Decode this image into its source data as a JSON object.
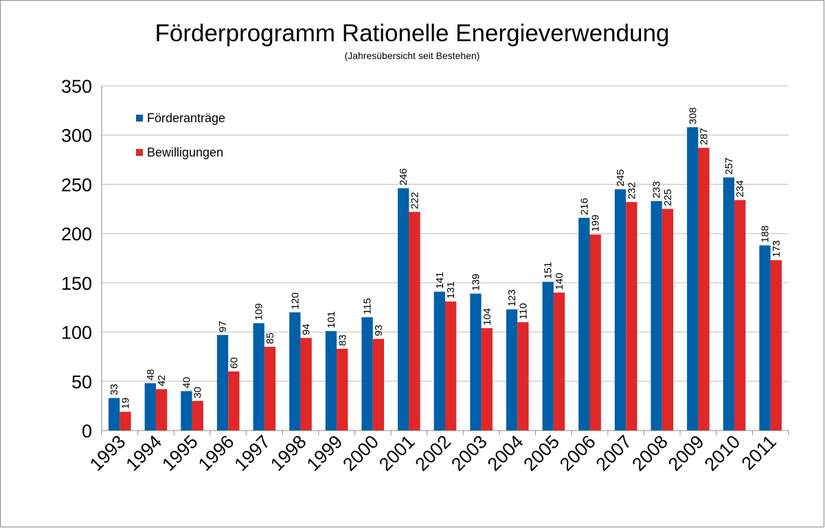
{
  "chart_data": {
    "type": "bar",
    "title": "Förderprogramm Rationelle Energieverwendung",
    "subtitle": "(Jahresübersicht seit Bestehen)",
    "categories": [
      "1993",
      "1994",
      "1995",
      "1996",
      "1997",
      "1998",
      "1999",
      "2000",
      "2001",
      "2002",
      "2003",
      "2004",
      "2005",
      "2006",
      "2007",
      "2008",
      "2009",
      "2010",
      "2011"
    ],
    "series": [
      {
        "name": "Förderanträge",
        "color": "#0060a8",
        "values": [
          33,
          48,
          40,
          97,
          109,
          120,
          101,
          115,
          246,
          141,
          139,
          123,
          151,
          216,
          245,
          233,
          308,
          257,
          188
        ]
      },
      {
        "name": "Bewilligungen",
        "color": "#e02828",
        "values": [
          19,
          42,
          30,
          60,
          85,
          94,
          83,
          93,
          222,
          131,
          104,
          110,
          140,
          199,
          232,
          225,
          287,
          234,
          173
        ]
      }
    ],
    "ylim": [
      0,
      350
    ],
    "yticks": [
      0,
      50,
      100,
      150,
      200,
      250,
      300,
      350
    ],
    "grid": true,
    "legend": "upper left"
  }
}
